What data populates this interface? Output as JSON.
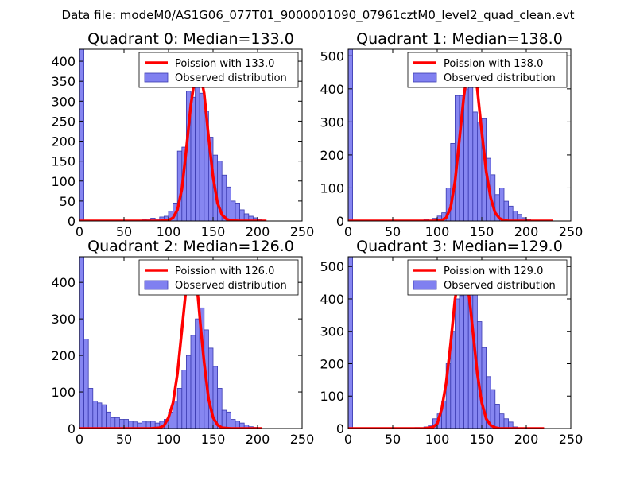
{
  "figure_title": "Data file: modeM0/AS1G06_077T01_9000001090_07961cztM0_level2_quad_clean.evt",
  "colors": {
    "bar_fill": "#8080f0",
    "bar_edge": "#3a3ab0",
    "poisson": "#ff0000",
    "axis": "#000000"
  },
  "chart_data": [
    {
      "type": "bar",
      "title": "Quadrant 0: Median=133.0",
      "bin_width": 5,
      "xlim": [
        0,
        250
      ],
      "ylim": [
        0,
        430
      ],
      "xticks": [
        0,
        50,
        100,
        150,
        200,
        250
      ],
      "yticks": [
        0,
        50,
        100,
        150,
        200,
        250,
        300,
        350,
        400
      ],
      "legend": [
        "Poission with 133.0",
        "Observed distribution"
      ],
      "hist_x": [
        0,
        70,
        75,
        80,
        85,
        90,
        95,
        100,
        105,
        110,
        115,
        120,
        125,
        130,
        135,
        140,
        145,
        150,
        155,
        160,
        165,
        170,
        175,
        180,
        185,
        190,
        195,
        200
      ],
      "hist_y": [
        430,
        3,
        5,
        7,
        5,
        10,
        12,
        25,
        45,
        175,
        185,
        325,
        310,
        375,
        320,
        275,
        210,
        165,
        150,
        115,
        85,
        50,
        45,
        28,
        18,
        12,
        8,
        3
      ],
      "poisson_x": [
        0,
        90,
        100,
        105,
        110,
        115,
        120,
        125,
        130,
        133,
        136,
        140,
        145,
        150,
        155,
        160,
        165,
        170,
        180,
        200,
        210
      ],
      "poisson_y": [
        0,
        0,
        2,
        8,
        28,
        80,
        180,
        290,
        365,
        375,
        365,
        320,
        210,
        110,
        45,
        16,
        5,
        1,
        0,
        0,
        0
      ]
    },
    {
      "type": "bar",
      "title": "Quadrant 1: Median=138.0",
      "bin_width": 5,
      "xlim": [
        0,
        250
      ],
      "ylim": [
        0,
        520
      ],
      "xticks": [
        0,
        50,
        100,
        150,
        200,
        250
      ],
      "yticks": [
        0,
        100,
        200,
        300,
        400,
        500
      ],
      "legend": [
        "Poission with 138.0",
        "Observed distribution"
      ],
      "hist_x": [
        0,
        85,
        95,
        100,
        105,
        110,
        115,
        120,
        125,
        130,
        135,
        140,
        145,
        150,
        155,
        160,
        165,
        170,
        175,
        180,
        185,
        190,
        195,
        200
      ],
      "hist_y": [
        520,
        5,
        8,
        15,
        25,
        100,
        235,
        380,
        380,
        400,
        480,
        330,
        300,
        310,
        190,
        140,
        80,
        100,
        60,
        45,
        30,
        20,
        10,
        5
      ],
      "poisson_x": [
        0,
        95,
        105,
        110,
        115,
        120,
        125,
        130,
        135,
        138,
        141,
        145,
        150,
        155,
        160,
        165,
        170,
        175,
        180,
        190,
        230
      ],
      "poisson_y": [
        0,
        0,
        2,
        10,
        40,
        120,
        250,
        380,
        470,
        490,
        470,
        400,
        270,
        150,
        70,
        25,
        8,
        2,
        0,
        0,
        0
      ]
    },
    {
      "type": "bar",
      "title": "Quadrant 2: Median=126.0",
      "bin_width": 5,
      "xlim": [
        0,
        250
      ],
      "ylim": [
        0,
        470
      ],
      "xticks": [
        0,
        50,
        100,
        150,
        200,
        250
      ],
      "yticks": [
        0,
        100,
        200,
        300,
        400
      ],
      "legend": [
        "Poission with 126.0",
        "Observed distribution"
      ],
      "hist_x": [
        0,
        5,
        10,
        15,
        20,
        25,
        30,
        35,
        40,
        45,
        50,
        55,
        60,
        65,
        70,
        75,
        80,
        85,
        90,
        95,
        100,
        105,
        110,
        115,
        120,
        125,
        130,
        135,
        140,
        145,
        150,
        155,
        160,
        165,
        170,
        175,
        180,
        185,
        190,
        195
      ],
      "hist_y": [
        470,
        245,
        110,
        75,
        70,
        65,
        45,
        30,
        30,
        25,
        25,
        20,
        18,
        15,
        20,
        18,
        20,
        15,
        20,
        25,
        45,
        75,
        110,
        160,
        200,
        255,
        300,
        330,
        270,
        220,
        170,
        110,
        50,
        45,
        25,
        20,
        15,
        10,
        5,
        3
      ],
      "poisson_x": [
        0,
        80,
        90,
        95,
        100,
        105,
        110,
        115,
        120,
        123,
        126,
        129,
        132,
        136,
        140,
        145,
        150,
        155,
        160,
        170,
        205
      ],
      "poisson_y": [
        0,
        0,
        2,
        8,
        30,
        70,
        150,
        270,
        390,
        440,
        450,
        440,
        390,
        280,
        180,
        80,
        30,
        10,
        2,
        0,
        0
      ]
    },
    {
      "type": "bar",
      "title": "Quadrant 3: Median=129.0",
      "bin_width": 5,
      "xlim": [
        0,
        250
      ],
      "ylim": [
        0,
        530
      ],
      "xticks": [
        0,
        50,
        100,
        150,
        200,
        250
      ],
      "yticks": [
        0,
        100,
        200,
        300,
        400,
        500
      ],
      "legend": [
        "Poission with 129.0",
        "Observed distribution"
      ],
      "hist_x": [
        0,
        75,
        85,
        90,
        95,
        100,
        105,
        110,
        115,
        120,
        125,
        130,
        135,
        140,
        145,
        150,
        155,
        160,
        165,
        170,
        175,
        180,
        185
      ],
      "hist_y": [
        530,
        3,
        5,
        10,
        30,
        45,
        85,
        200,
        300,
        400,
        410,
        450,
        460,
        420,
        330,
        250,
        160,
        120,
        75,
        45,
        30,
        20,
        5
      ],
      "poisson_x": [
        0,
        85,
        95,
        100,
        105,
        110,
        115,
        120,
        125,
        129,
        133,
        137,
        140,
        145,
        150,
        155,
        160,
        165,
        170,
        180,
        220
      ],
      "poisson_y": [
        0,
        0,
        4,
        15,
        60,
        140,
        260,
        400,
        480,
        500,
        470,
        380,
        300,
        170,
        80,
        30,
        10,
        3,
        0,
        0,
        0
      ]
    }
  ]
}
